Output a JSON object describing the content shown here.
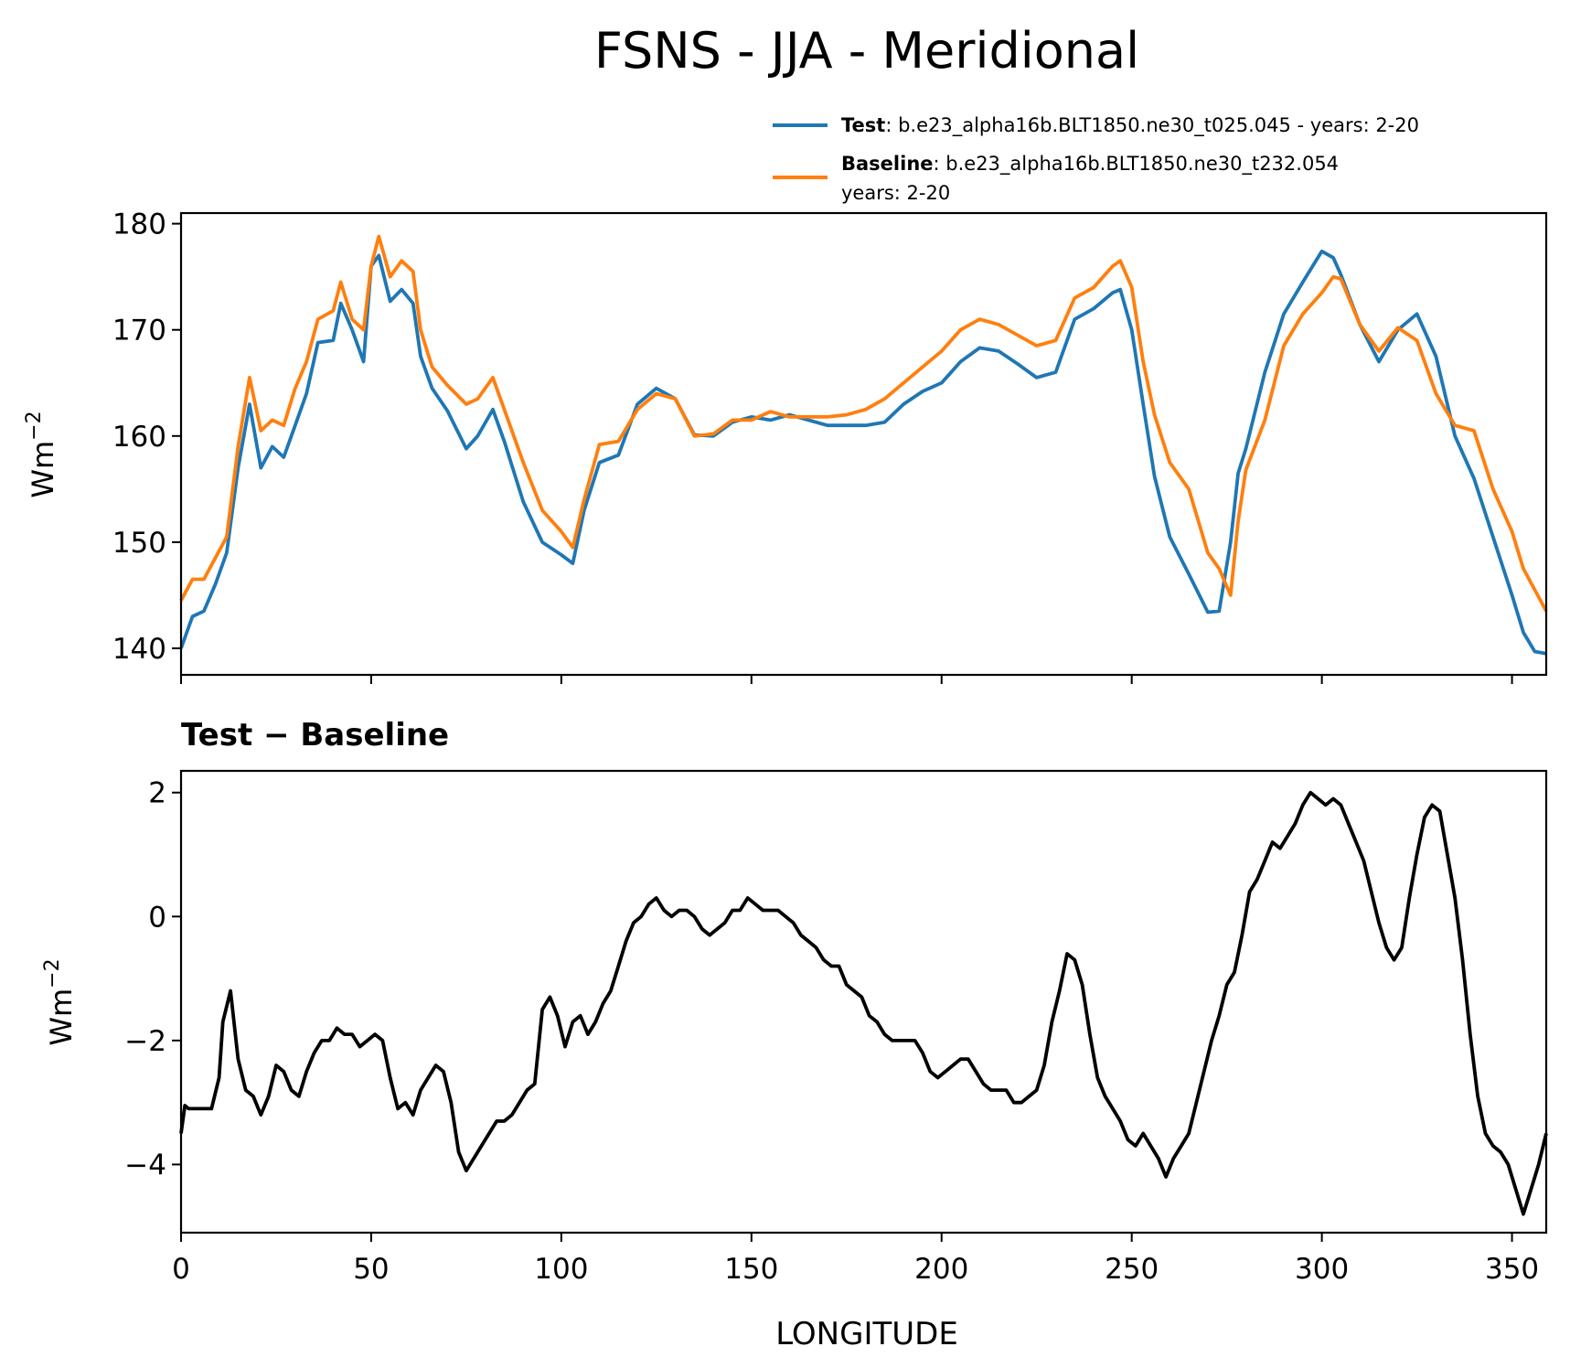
{
  "figure_title": "FSNS - JJA - Meridional",
  "legend": {
    "test_label": "Test",
    "test_desc": ": b.e23_alpha16b.BLT1850.ne30_t025.045 - years: 2-20",
    "baseline_label": "Baseline",
    "baseline_desc": ": b.e23_alpha16b.BLT1850.ne30_t232.054",
    "baseline_years": "years: 2-20"
  },
  "colors": {
    "test": "#1f77b4",
    "baseline": "#ff7f0e",
    "diff": "#000000"
  },
  "chart_data": [
    {
      "type": "line",
      "title": "",
      "xlabel": "",
      "ylabel": "Wm",
      "ylabel_sup": "−2",
      "xlim": [
        0,
        359
      ],
      "ylim": [
        137.5,
        181
      ],
      "yticks": [
        140,
        150,
        160,
        170,
        180
      ],
      "ytick_labels": [
        "140",
        "150",
        "160",
        "170",
        "180"
      ],
      "xticks": [
        0,
        50,
        100,
        150,
        200,
        250,
        300,
        350
      ],
      "series": [
        {
          "name": "Test",
          "x": [
            0,
            3,
            6,
            9,
            12,
            15,
            18,
            21,
            24,
            27,
            30,
            33,
            36,
            40,
            42,
            45,
            48,
            50,
            52,
            55,
            58,
            61,
            63,
            66,
            70,
            75,
            78,
            82,
            85,
            90,
            95,
            100,
            103,
            106,
            110,
            115,
            120,
            125,
            130,
            135,
            140,
            145,
            150,
            155,
            160,
            165,
            170,
            175,
            180,
            185,
            190,
            195,
            200,
            205,
            210,
            215,
            220,
            225,
            230,
            235,
            240,
            245,
            247,
            250,
            253,
            256,
            260,
            265,
            270,
            273,
            276,
            278,
            280,
            285,
            290,
            295,
            300,
            303,
            305,
            310,
            315,
            320,
            325,
            330,
            335,
            340,
            345,
            350,
            353,
            356,
            359
          ],
          "values": [
            140,
            143,
            143.5,
            146,
            149,
            157,
            163,
            157,
            159,
            158,
            161,
            164,
            168.8,
            169,
            172.5,
            170,
            167,
            176,
            177,
            172.7,
            173.8,
            172.5,
            167.5,
            164.5,
            162.4,
            158.8,
            160,
            162.5,
            159.5,
            153.8,
            150,
            148.8,
            148,
            153,
            157.5,
            158.2,
            163,
            164.5,
            163.5,
            160.1,
            160,
            161.3,
            161.8,
            161.5,
            162,
            161.5,
            161,
            161,
            161,
            161.3,
            163,
            164.2,
            165,
            167,
            168.3,
            168,
            166.8,
            165.5,
            166,
            171,
            172,
            173.5,
            173.8,
            170,
            163,
            156.2,
            150.5,
            147,
            143.4,
            143.5,
            150,
            156.5,
            158.8,
            166,
            171.5,
            174.5,
            177.4,
            176.8,
            175.2,
            170.5,
            167,
            170,
            171.5,
            167.5,
            160,
            156,
            150.5,
            145,
            141.5,
            139.7,
            139.5
          ]
        },
        {
          "name": "Baseline",
          "x": [
            0,
            3,
            6,
            9,
            12,
            15,
            18,
            21,
            24,
            27,
            30,
            33,
            36,
            40,
            42,
            45,
            48,
            50,
            52,
            55,
            58,
            61,
            63,
            66,
            70,
            75,
            78,
            82,
            85,
            90,
            95,
            100,
            103,
            106,
            110,
            115,
            120,
            125,
            130,
            135,
            140,
            145,
            150,
            155,
            160,
            165,
            170,
            175,
            180,
            185,
            190,
            195,
            200,
            205,
            210,
            215,
            220,
            225,
            230,
            235,
            240,
            245,
            247,
            250,
            253,
            256,
            260,
            265,
            270,
            273,
            276,
            278,
            280,
            285,
            290,
            295,
            300,
            303,
            305,
            310,
            315,
            320,
            325,
            330,
            335,
            340,
            345,
            350,
            353,
            356,
            359
          ],
          "values": [
            144.5,
            146.5,
            146.5,
            148.5,
            150.5,
            159,
            165.5,
            160.5,
            161.5,
            161,
            164.5,
            167,
            171,
            171.8,
            174.5,
            171,
            170,
            176,
            178.8,
            175,
            176.5,
            175.5,
            170,
            166.5,
            164.8,
            163,
            163.5,
            165.5,
            162.5,
            157.5,
            153,
            151,
            149.5,
            154,
            159.2,
            159.5,
            162.5,
            164,
            163.5,
            160,
            160.2,
            161.5,
            161.5,
            162.3,
            161.8,
            161.8,
            161.8,
            162,
            162.5,
            163.5,
            165,
            166.5,
            168,
            170,
            171,
            170.5,
            169.5,
            168.5,
            169,
            173,
            174,
            176,
            176.5,
            174,
            167,
            162,
            157.5,
            155,
            149,
            147.5,
            145,
            152,
            156.8,
            161.5,
            168.5,
            171.5,
            173.5,
            175,
            174.8,
            170.5,
            168,
            170.2,
            169,
            164,
            161,
            160.5,
            155,
            151,
            147.5,
            145.5,
            143.5
          ]
        }
      ]
    },
    {
      "type": "line",
      "title": "Test − Baseline",
      "xlabel": "LONGITUDE",
      "ylabel": "Wm",
      "ylabel_sup": "−2",
      "xlim": [
        0,
        359
      ],
      "ylim": [
        -5.1,
        2.35
      ],
      "yticks": [
        -4,
        -2,
        0,
        2
      ],
      "ytick_labels": [
        "−4",
        "−2",
        "0",
        "2"
      ],
      "xticks": [
        0,
        50,
        100,
        150,
        200,
        250,
        300,
        350
      ],
      "xtick_labels": [
        "0",
        "50",
        "100",
        "150",
        "200",
        "250",
        "300",
        "350"
      ],
      "series": [
        {
          "name": "Test − Baseline",
          "x": [
            0,
            1,
            2,
            4,
            6,
            8,
            10,
            11,
            13,
            15,
            17,
            19,
            21,
            23,
            25,
            27,
            29,
            31,
            33,
            35,
            37,
            39,
            41,
            43,
            45,
            47,
            49,
            51,
            53,
            55,
            57,
            59,
            61,
            63,
            65,
            67,
            69,
            71,
            73,
            75,
            77,
            79,
            81,
            83,
            85,
            87,
            89,
            91,
            93,
            95,
            97,
            99,
            101,
            103,
            105,
            107,
            109,
            111,
            113,
            115,
            117,
            119,
            121,
            123,
            125,
            127,
            129,
            131,
            133,
            135,
            137,
            139,
            141,
            143,
            145,
            147,
            149,
            151,
            153,
            155,
            157,
            159,
            161,
            163,
            165,
            167,
            169,
            171,
            173,
            175,
            177,
            179,
            181,
            183,
            185,
            187,
            189,
            191,
            193,
            195,
            197,
            199,
            201,
            203,
            205,
            207,
            209,
            211,
            213,
            215,
            217,
            219,
            221,
            223,
            225,
            227,
            229,
            231,
            233,
            235,
            237,
            239,
            241,
            243,
            245,
            247,
            249,
            251,
            253,
            255,
            257,
            259,
            261,
            263,
            265,
            267,
            269,
            271,
            273,
            275,
            277,
            279,
            281,
            283,
            285,
            287,
            289,
            291,
            293,
            295,
            297,
            299,
            301,
            303,
            305,
            307,
            309,
            311,
            313,
            315,
            317,
            319,
            321,
            323,
            325,
            327,
            329,
            331,
            333,
            335,
            337,
            339,
            341,
            343,
            345,
            347,
            349,
            351,
            353,
            355,
            357,
            359
          ],
          "values": [
            -3.5,
            -3.05,
            -3.1,
            -3.1,
            -3.1,
            -3.1,
            -2.6,
            -1.7,
            -1.2,
            -2.3,
            -2.8,
            -2.9,
            -3.2,
            -2.9,
            -2.4,
            -2.5,
            -2.8,
            -2.9,
            -2.5,
            -2.2,
            -2,
            -2,
            -1.8,
            -1.9,
            -1.9,
            -2.1,
            -2,
            -1.9,
            -2,
            -2.6,
            -3.1,
            -3,
            -3.2,
            -2.8,
            -2.6,
            -2.4,
            -2.5,
            -3,
            -3.8,
            -4.1,
            -3.9,
            -3.7,
            -3.5,
            -3.3,
            -3.3,
            -3.2,
            -3,
            -2.8,
            -2.7,
            -1.5,
            -1.3,
            -1.6,
            -2.1,
            -1.7,
            -1.6,
            -1.9,
            -1.7,
            -1.4,
            -1.2,
            -0.8,
            -0.4,
            -0.1,
            0,
            0.2,
            0.3,
            0.1,
            0,
            0.1,
            0.1,
            0,
            -0.2,
            -0.3,
            -0.2,
            -0.1,
            0.1,
            0.1,
            0.3,
            0.2,
            0.1,
            0.1,
            0.1,
            0,
            -0.1,
            -0.3,
            -0.4,
            -0.5,
            -0.7,
            -0.8,
            -0.8,
            -1.1,
            -1.2,
            -1.3,
            -1.6,
            -1.7,
            -1.9,
            -2,
            -2,
            -2,
            -2,
            -2.2,
            -2.5,
            -2.6,
            -2.5,
            -2.4,
            -2.3,
            -2.3,
            -2.5,
            -2.7,
            -2.8,
            -2.8,
            -2.8,
            -3,
            -3,
            -2.9,
            -2.8,
            -2.4,
            -1.7,
            -1.2,
            -0.6,
            -0.7,
            -1.1,
            -1.9,
            -2.6,
            -2.9,
            -3.1,
            -3.3,
            -3.6,
            -3.7,
            -3.5,
            -3.7,
            -3.9,
            -4.2,
            -3.9,
            -3.7,
            -3.5,
            -3,
            -2.5,
            -2,
            -1.6,
            -1.1,
            -0.9,
            -0.3,
            0.4,
            0.6,
            0.9,
            1.2,
            1.1,
            1.3,
            1.5,
            1.8,
            2,
            1.9,
            1.8,
            1.9,
            1.8,
            1.5,
            1.2,
            0.9,
            0.4,
            -0.1,
            -0.5,
            -0.7,
            -0.5,
            0.3,
            1,
            1.6,
            1.8,
            1.7,
            1,
            0.3,
            -0.7,
            -1.9,
            -2.9,
            -3.5,
            -3.7,
            -3.8,
            -4,
            -4.4,
            -4.8,
            -4.4,
            -4,
            -3.5
          ]
        }
      ]
    }
  ]
}
